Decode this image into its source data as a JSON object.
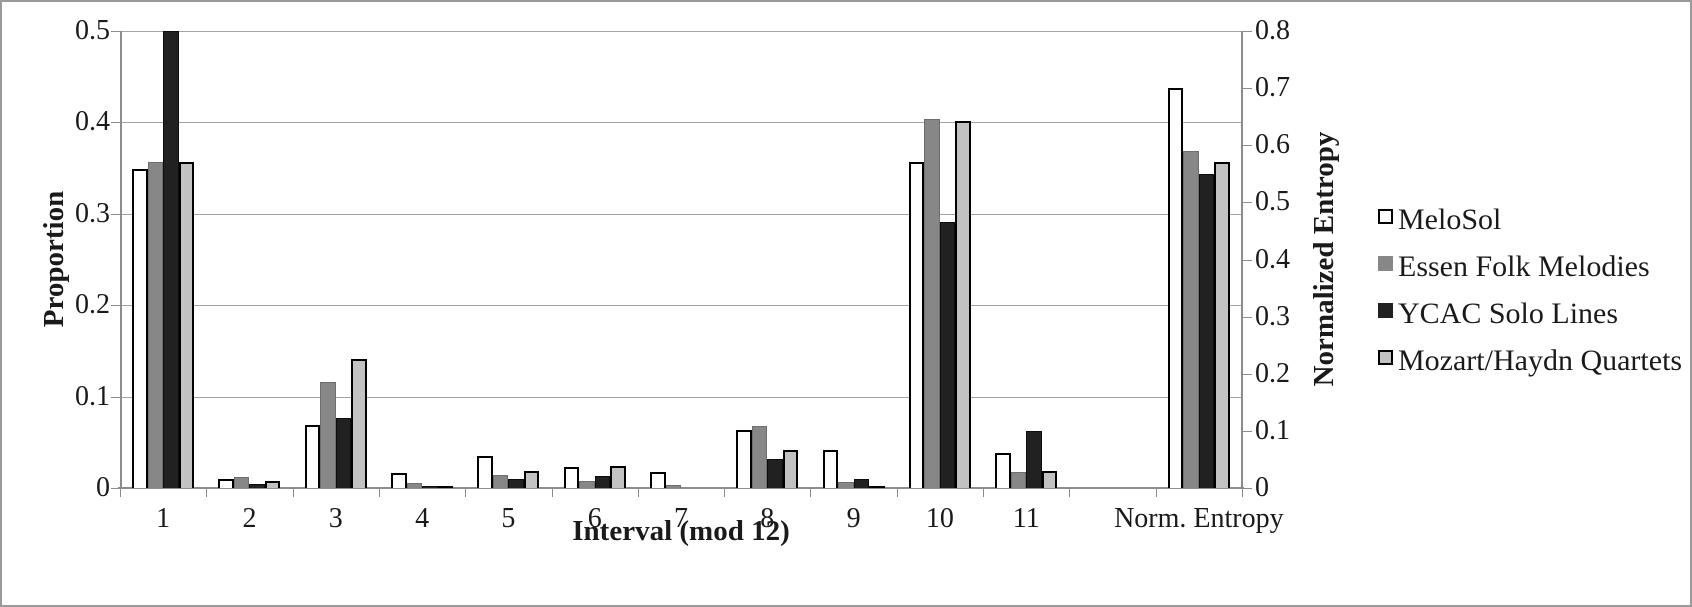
{
  "chart_data": {
    "type": "bar",
    "title": "",
    "xlabel": "Interval (mod 12)",
    "ylabel_left": "Proportion",
    "ylabel_right": "Normalized Entropy",
    "left_axis": {
      "min": 0,
      "max": 0.5,
      "tick_labels": [
        "0",
        "0.1",
        "0.2",
        "0.3",
        "0.4",
        "0.5"
      ],
      "grid": true
    },
    "right_axis": {
      "min": 0,
      "max": 0.8,
      "tick_labels": [
        "0",
        "0.1",
        "0.2",
        "0.3",
        "0.4",
        "0.5",
        "0.6",
        "0.7",
        "0.8"
      ]
    },
    "categories": [
      "1",
      "2",
      "3",
      "4",
      "5",
      "6",
      "7",
      "8",
      "9",
      "10",
      "11",
      "Norm. Entropy"
    ],
    "gap_slot_before_last_category": true,
    "legend_position": "right",
    "series": [
      {
        "name": "MeloSol",
        "fill": "#ffffff",
        "border": "#000000",
        "border_width": 2,
        "proportions": [
          0.349,
          0.01,
          0.069,
          0.016,
          0.035,
          0.023,
          0.018,
          0.063,
          0.042,
          0.357,
          0.038
        ],
        "norm_entropy": 0.7
      },
      {
        "name": "Essen Folk Melodies",
        "fill": "#878787",
        "border": "#6e6e6e",
        "border_width": 1,
        "proportions": [
          0.357,
          0.012,
          0.116,
          0.006,
          0.014,
          0.008,
          0.003,
          0.068,
          0.007,
          0.404,
          0.017
        ],
        "norm_entropy": 0.59
      },
      {
        "name": "YCAC Solo Lines",
        "fill": "#212121",
        "border": "#0d0d0d",
        "border_width": 1,
        "proportions": [
          0.5,
          0.004,
          0.077,
          0.002,
          0.01,
          0.013,
          0.001,
          0.032,
          0.01,
          0.291,
          0.062
        ],
        "norm_entropy": 0.55,
        "note": "interval-1 bar exceeds axis maximum and is clipped at 0.5"
      },
      {
        "name": "Mozart/Haydn Quartets",
        "fill": "#c2c2c2",
        "border": "#000000",
        "border_width": 2,
        "proportions": [
          0.357,
          0.008,
          0.141,
          0.002,
          0.019,
          0.024,
          0.001,
          0.042,
          0.002,
          0.402,
          0.019
        ],
        "norm_entropy": 0.57
      }
    ]
  }
}
